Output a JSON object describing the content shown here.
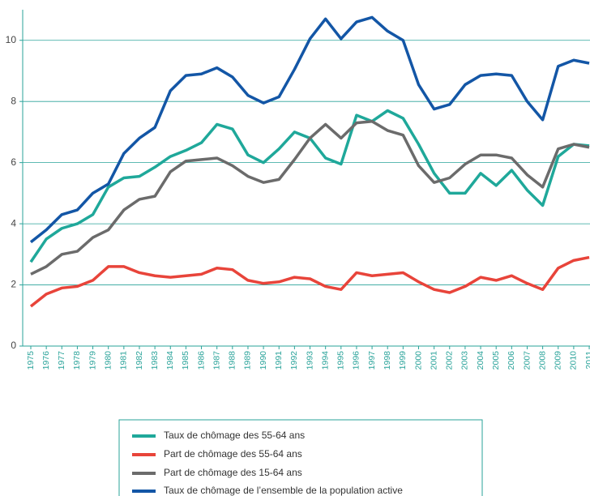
{
  "chart_data": {
    "type": "line",
    "categories": [
      "1975",
      "1976",
      "1977",
      "1978",
      "1979",
      "1980",
      "1981",
      "1982",
      "1983",
      "1984",
      "1985",
      "1986",
      "1987",
      "1988",
      "1989",
      "1990",
      "1991",
      "1992",
      "1993",
      "1994",
      "1995",
      "1996",
      "1997",
      "1998",
      "1999",
      "2000",
      "2001",
      "2002",
      "2003",
      "2004",
      "2005",
      "2006",
      "2007",
      "2008",
      "2009",
      "2010",
      "2011"
    ],
    "series": [
      {
        "name": "Taux de chômage des 55-64 ans",
        "color": "#1fa89a",
        "values": [
          2.75,
          3.5,
          3.85,
          4.0,
          4.3,
          5.2,
          5.5,
          5.55,
          5.85,
          6.2,
          6.4,
          6.65,
          7.25,
          7.1,
          6.25,
          6.0,
          6.45,
          7.0,
          6.8,
          6.15,
          5.95,
          7.55,
          7.35,
          7.7,
          7.45,
          6.6,
          5.65,
          5.0,
          5.0,
          5.65,
          5.25,
          5.75,
          5.1,
          4.6,
          6.2,
          6.6,
          6.55
        ]
      },
      {
        "name": "Part de chômage des 55-64 ans",
        "color": "#e8443a",
        "values": [
          1.3,
          1.7,
          1.9,
          1.95,
          2.15,
          2.6,
          2.6,
          2.4,
          2.3,
          2.25,
          2.3,
          2.35,
          2.55,
          2.5,
          2.15,
          2.05,
          2.1,
          2.25,
          2.2,
          1.95,
          1.85,
          2.4,
          2.3,
          2.35,
          2.4,
          2.1,
          1.85,
          1.75,
          1.95,
          2.25,
          2.15,
          2.3,
          2.05,
          1.85,
          2.55,
          2.8,
          2.9
        ]
      },
      {
        "name": "Part de chômage des 15-64 ans",
        "color": "#6b6b6b",
        "values": [
          2.35,
          2.6,
          3.0,
          3.1,
          3.55,
          3.8,
          4.45,
          4.8,
          4.9,
          5.7,
          6.05,
          6.1,
          6.15,
          5.9,
          5.55,
          5.35,
          5.45,
          6.1,
          6.8,
          7.25,
          6.8,
          7.3,
          7.35,
          7.05,
          6.9,
          5.9,
          5.35,
          5.5,
          5.95,
          6.25,
          6.25,
          6.15,
          5.6,
          5.2,
          6.45,
          6.6,
          6.5
        ]
      },
      {
        "name": "Taux de chômage de l’ensemble de la population active",
        "color": "#1356a6",
        "values": [
          3.4,
          3.8,
          4.3,
          4.45,
          5.0,
          5.3,
          6.3,
          6.8,
          7.15,
          8.35,
          8.85,
          8.9,
          9.1,
          8.8,
          8.2,
          7.95,
          8.15,
          9.05,
          10.05,
          10.7,
          10.05,
          10.6,
          10.75,
          10.3,
          10.0,
          8.55,
          7.75,
          7.9,
          8.55,
          8.85,
          8.9,
          8.85,
          8.0,
          7.4,
          9.15,
          9.35,
          9.25
        ]
      }
    ],
    "ylim": [
      0,
      11
    ],
    "yticks": [
      0,
      2,
      4,
      6,
      8,
      10
    ],
    "grid": true
  }
}
